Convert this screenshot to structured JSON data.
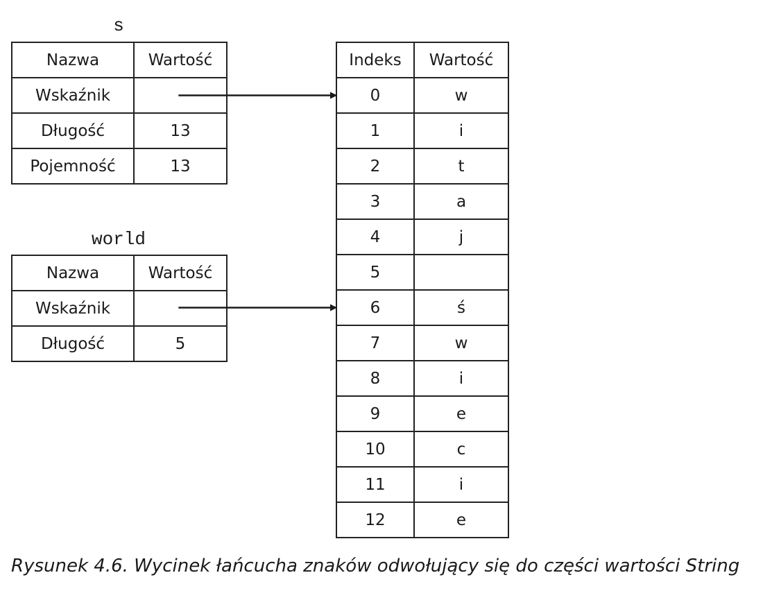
{
  "s_struct": {
    "label": "s",
    "headers": [
      "Nazwa",
      "Wartość"
    ],
    "rows": [
      {
        "name": "Wskaźnik",
        "value": ""
      },
      {
        "name": "Długość",
        "value": "13"
      },
      {
        "name": "Pojemność",
        "value": "13"
      }
    ]
  },
  "world_struct": {
    "label": "world",
    "headers": [
      "Nazwa",
      "Wartość"
    ],
    "rows": [
      {
        "name": "Wskaźnik",
        "value": ""
      },
      {
        "name": "Długość",
        "value": "5"
      }
    ]
  },
  "array": {
    "headers": [
      "Indeks",
      "Wartość"
    ],
    "rows": [
      {
        "index": "0",
        "value": "w"
      },
      {
        "index": "1",
        "value": "i"
      },
      {
        "index": "2",
        "value": "t"
      },
      {
        "index": "3",
        "value": "a"
      },
      {
        "index": "4",
        "value": "j"
      },
      {
        "index": "5",
        "value": ""
      },
      {
        "index": "6",
        "value": "ś"
      },
      {
        "index": "7",
        "value": "w"
      },
      {
        "index": "8",
        "value": "i"
      },
      {
        "index": "9",
        "value": "e"
      },
      {
        "index": "10",
        "value": "c"
      },
      {
        "index": "11",
        "value": "i"
      },
      {
        "index": "12",
        "value": "e"
      }
    ]
  },
  "pointers": [
    {
      "from": "s",
      "to_index": 0
    },
    {
      "from": "world",
      "to_index": 6
    }
  ],
  "caption": "Rysunek 4.6. Wycinek łańcucha znaków odwołujący się do części wartości String",
  "colors": {
    "line": "#1a1a1a",
    "background": "#ffffff"
  }
}
